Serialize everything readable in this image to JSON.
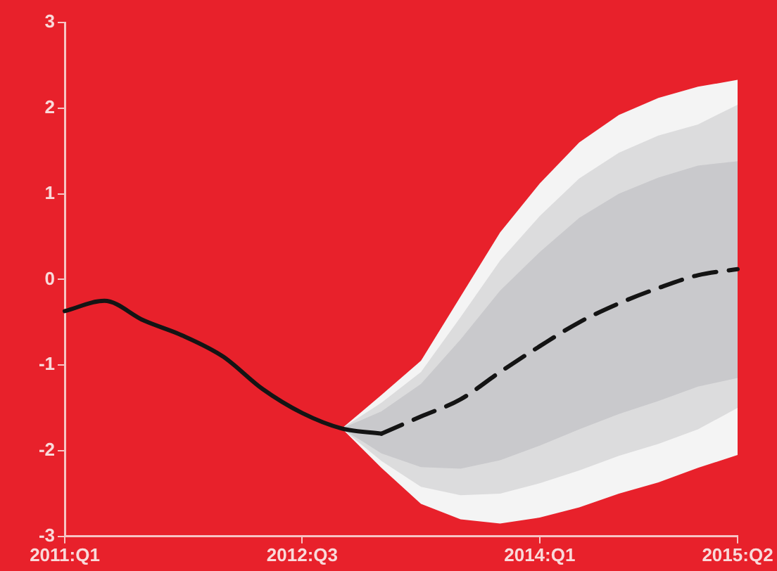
{
  "chart_data": {
    "type": "line",
    "categories": [
      "2011:Q1",
      null,
      null,
      null,
      null,
      null,
      "2012:Q3",
      null,
      null,
      null,
      null,
      null,
      "2014:Q1",
      null,
      null,
      null,
      null,
      "2015:Q2"
    ],
    "series": [
      {
        "type": "area",
        "color": "#f4f4f4",
        "values": [
          null,
          null,
          null,
          null,
          null,
          null,
          null,
          null,
          null,
          null,
          null,
          null,
          null,
          null,
          null,
          null,
          null,
          null
        ],
        "lower": [
          null,
          null,
          null,
          null,
          null,
          null,
          null,
          -1.74,
          -2.2,
          -2.62,
          -2.8,
          -2.85,
          -2.78,
          -2.66,
          -2.5,
          -2.37,
          -2.2,
          -2.05
        ],
        "upper": [
          null,
          null,
          null,
          null,
          null,
          null,
          null,
          -1.74,
          -1.35,
          -0.95,
          -0.2,
          0.55,
          1.12,
          1.6,
          1.92,
          2.12,
          2.25,
          2.33
        ]
      },
      {
        "type": "area",
        "color": "#dcdcdd",
        "values": [
          null,
          null,
          null,
          null,
          null,
          null,
          null,
          null,
          null,
          null,
          null,
          null,
          null,
          null,
          null,
          null,
          null,
          null
        ],
        "lower": [
          null,
          null,
          null,
          null,
          null,
          null,
          null,
          -1.74,
          -2.12,
          -2.42,
          -2.52,
          -2.5,
          -2.38,
          -2.23,
          -2.06,
          -1.92,
          -1.75,
          -1.5
        ],
        "upper": [
          null,
          null,
          null,
          null,
          null,
          null,
          null,
          -1.74,
          -1.44,
          -1.08,
          -0.44,
          0.22,
          0.74,
          1.18,
          1.48,
          1.68,
          1.81,
          2.04
        ]
      },
      {
        "type": "area",
        "color": "#c9c9cc",
        "values": [
          null,
          null,
          null,
          null,
          null,
          null,
          null,
          null,
          null,
          null,
          null,
          null,
          null,
          null,
          null,
          null,
          null,
          null
        ],
        "lower": [
          null,
          null,
          null,
          null,
          null,
          null,
          null,
          -1.74,
          -2.03,
          -2.19,
          -2.21,
          -2.11,
          -1.94,
          -1.75,
          -1.57,
          -1.42,
          -1.25,
          -1.15
        ],
        "upper": [
          null,
          null,
          null,
          null,
          null,
          null,
          null,
          -1.74,
          -1.54,
          -1.22,
          -0.7,
          -0.13,
          0.32,
          0.72,
          1.0,
          1.19,
          1.33,
          1.38
        ]
      },
      {
        "color": "#141414",
        "line_style": "solid",
        "values": [
          -0.37,
          -0.25,
          -0.48,
          -0.66,
          -0.9,
          -1.28,
          -1.56,
          -1.74,
          -1.8,
          null,
          null,
          null,
          null,
          null,
          null,
          null,
          null,
          null
        ]
      },
      {
        "color": "#141414",
        "line_style": "dashed",
        "values": [
          null,
          null,
          null,
          null,
          null,
          null,
          null,
          null,
          -1.8,
          -1.6,
          -1.4,
          -1.08,
          -0.78,
          -0.5,
          -0.28,
          -0.1,
          0.05,
          0.12
        ]
      }
    ],
    "ylim": [
      -3,
      3
    ],
    "yticks": [
      -3,
      -2,
      -1,
      0,
      1,
      2,
      3
    ],
    "grid": false,
    "legend": false,
    "marker": "none"
  }
}
